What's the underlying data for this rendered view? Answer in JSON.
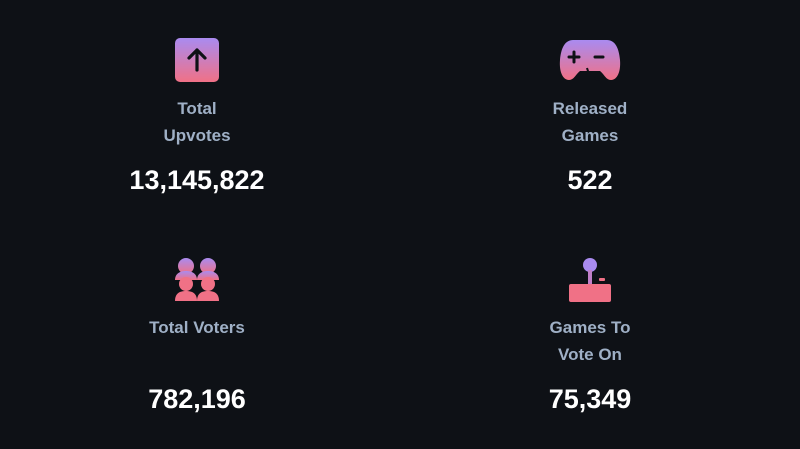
{
  "stats": [
    {
      "label_lines": [
        "Total",
        "Upvotes"
      ],
      "value": "13,145,822",
      "icon": "upvote-icon"
    },
    {
      "label_lines": [
        "Released",
        "Games"
      ],
      "value": "522",
      "icon": "gamepad-icon"
    },
    {
      "label_lines": [
        "Total Voters"
      ],
      "value": "782,196",
      "icon": "users-icon"
    },
    {
      "label_lines": [
        "Games To",
        "Vote On"
      ],
      "value": "75,349",
      "icon": "joystick-icon"
    }
  ],
  "colors": {
    "background": "#0e1116",
    "label": "#9fb0c6",
    "value": "#ffffff",
    "gradient_top": "#a98bf0",
    "gradient_bottom": "#f07186"
  }
}
